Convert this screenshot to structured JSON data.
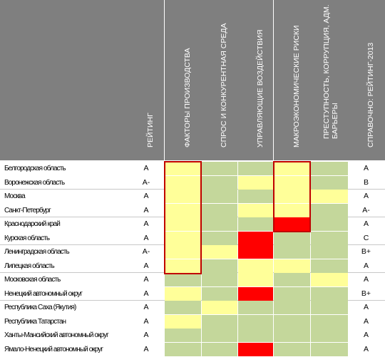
{
  "headers": {
    "rating": "РЕЙТИНГ",
    "factors": "ФАКТОРЫ ПРОИЗВОДСТВА",
    "demand": "СПРОС И КОНКУРЕНТНАЯ СРЕДА",
    "management": "УПРАВЛЯЮЩИЕ ВОЗДЕЙСТВИЯ",
    "macro": "МАКРОЭКОНОМИЧЕСКИЕ РИСКИ",
    "crime": "ПРЕСТУПНОСТЬ, КОРРУПЦИЯ, АДМ. БАРЬЕРЫ",
    "ref2013": "СПРАВОЧНО: РЕЙТИНГ-2013"
  },
  "colors": {
    "green": "#c4d79b",
    "yellow": "#ffff99",
    "red": "#ff0000",
    "outline": "#c00000",
    "header": "#7f7f7f"
  },
  "cell_legend": {
    "G": "green",
    "Y": "yellow",
    "R": "red",
    "W": "white"
  },
  "rows": [
    {
      "region": "Белгородская область",
      "rating": "A",
      "cells": [
        "Y",
        "G",
        "G",
        "Y",
        "G"
      ],
      "ref2013": "A"
    },
    {
      "region": "Воронежская область",
      "rating": "A-",
      "cells": [
        "Y",
        "G",
        "Y",
        "Y",
        "G"
      ],
      "ref2013": "B"
    },
    {
      "region": "Москва",
      "rating": "A",
      "cells": [
        "Y",
        "G",
        "G",
        "Y",
        "Y"
      ],
      "ref2013": "A"
    },
    {
      "region": "Санкт-Петербург",
      "rating": "A",
      "cells": [
        "Y",
        "G",
        "Y",
        "Y",
        "G"
      ],
      "ref2013": "A-"
    },
    {
      "region": "Краснодарский край",
      "rating": "A",
      "cells": [
        "Y",
        "G",
        "G",
        "R",
        "G"
      ],
      "ref2013": "A"
    },
    {
      "region": "Курская область",
      "rating": "A",
      "cells": [
        "Y",
        "G",
        "R",
        "G",
        "G"
      ],
      "ref2013": "C"
    },
    {
      "region": "Ленинградская область",
      "rating": "A-",
      "cells": [
        "Y",
        "Y",
        "R",
        "G",
        "G"
      ],
      "ref2013": "B+"
    },
    {
      "region": "Липецкая область",
      "rating": "A",
      "cells": [
        "Y",
        "G",
        "Y",
        "Y",
        "G"
      ],
      "ref2013": "A"
    },
    {
      "region": "Московская область",
      "rating": "A",
      "cells": [
        "G",
        "G",
        "Y",
        "G",
        "Y"
      ],
      "ref2013": "A"
    },
    {
      "region": "Ненецкий автономный округ",
      "rating": "A",
      "cells": [
        "Y",
        "G",
        "R",
        "G",
        "G"
      ],
      "ref2013": "B+"
    },
    {
      "region": "Республика Саха (Якутия)",
      "rating": "A",
      "cells": [
        "G",
        "Y",
        "G",
        "G",
        "G"
      ],
      "ref2013": "A"
    },
    {
      "region": "Республика Татарстан",
      "rating": "A",
      "cells": [
        "Y",
        "G",
        "G",
        "G",
        "G"
      ],
      "ref2013": "A"
    },
    {
      "region": "Ханты-Мансийский автономный округ",
      "rating": "A",
      "cells": [
        "G",
        "G",
        "G",
        "G",
        "G"
      ],
      "ref2013": "A"
    },
    {
      "region": "Ямало-Ненецкий автономный округ",
      "rating": "A",
      "cells": [
        "G",
        "G",
        "R",
        "G",
        "G"
      ],
      "ref2013": "A"
    }
  ]
}
